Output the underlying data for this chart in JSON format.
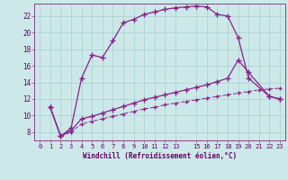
{
  "xlabel": "Windchill (Refroidissement éolien,°C)",
  "bg_color": "#cce8e8",
  "line_color": "#882288",
  "grid_color": "#aad0d0",
  "xlim": [
    -0.5,
    23.5
  ],
  "ylim": [
    7.0,
    23.5
  ],
  "yticks": [
    8,
    10,
    12,
    14,
    16,
    18,
    20,
    22
  ],
  "xtick_vals": [
    0,
    1,
    2,
    3,
    4,
    5,
    6,
    7,
    8,
    9,
    10,
    11,
    12,
    13,
    15,
    16,
    17,
    18,
    19,
    20,
    21,
    22,
    23
  ],
  "xtick_labels": [
    "0",
    "1",
    "2",
    "3",
    "4",
    "5",
    "6",
    "7",
    "8",
    "9",
    "10",
    "11",
    "12",
    "13",
    "15",
    "16",
    "17",
    "18",
    "19",
    "20",
    "21",
    "22",
    "23"
  ],
  "curve1_x": [
    1,
    2,
    3,
    4,
    5,
    6,
    7,
    8,
    9,
    10,
    11,
    12,
    13,
    14,
    15,
    16,
    17,
    18,
    19,
    20,
    22,
    23
  ],
  "curve1_y": [
    11.0,
    7.5,
    8.5,
    14.5,
    17.3,
    17.0,
    19.0,
    21.2,
    21.6,
    22.2,
    22.5,
    22.8,
    23.0,
    23.1,
    23.2,
    23.1,
    22.2,
    22.0,
    19.4,
    14.5,
    12.3,
    12.0
  ],
  "curve2_x": [
    1,
    2,
    3,
    4,
    5,
    6,
    7,
    8,
    9,
    10,
    11,
    12,
    13,
    14,
    15,
    16,
    17,
    18,
    19,
    20,
    22,
    23
  ],
  "curve2_y": [
    11.0,
    7.5,
    8.2,
    9.6,
    9.9,
    10.3,
    10.7,
    11.1,
    11.5,
    11.9,
    12.2,
    12.5,
    12.8,
    13.1,
    13.4,
    13.7,
    14.1,
    14.5,
    16.7,
    15.2,
    12.3,
    12.0
  ],
  "curve3_x": [
    1,
    2,
    3,
    4,
    5,
    6,
    7,
    8,
    9,
    10,
    11,
    12,
    13,
    14,
    15,
    16,
    17,
    18,
    19,
    20,
    21,
    22,
    23
  ],
  "curve3_y": [
    11.0,
    7.5,
    8.0,
    9.0,
    9.3,
    9.6,
    9.9,
    10.2,
    10.5,
    10.8,
    11.0,
    11.3,
    11.5,
    11.7,
    11.9,
    12.1,
    12.3,
    12.5,
    12.7,
    12.9,
    13.1,
    13.2,
    13.3
  ]
}
